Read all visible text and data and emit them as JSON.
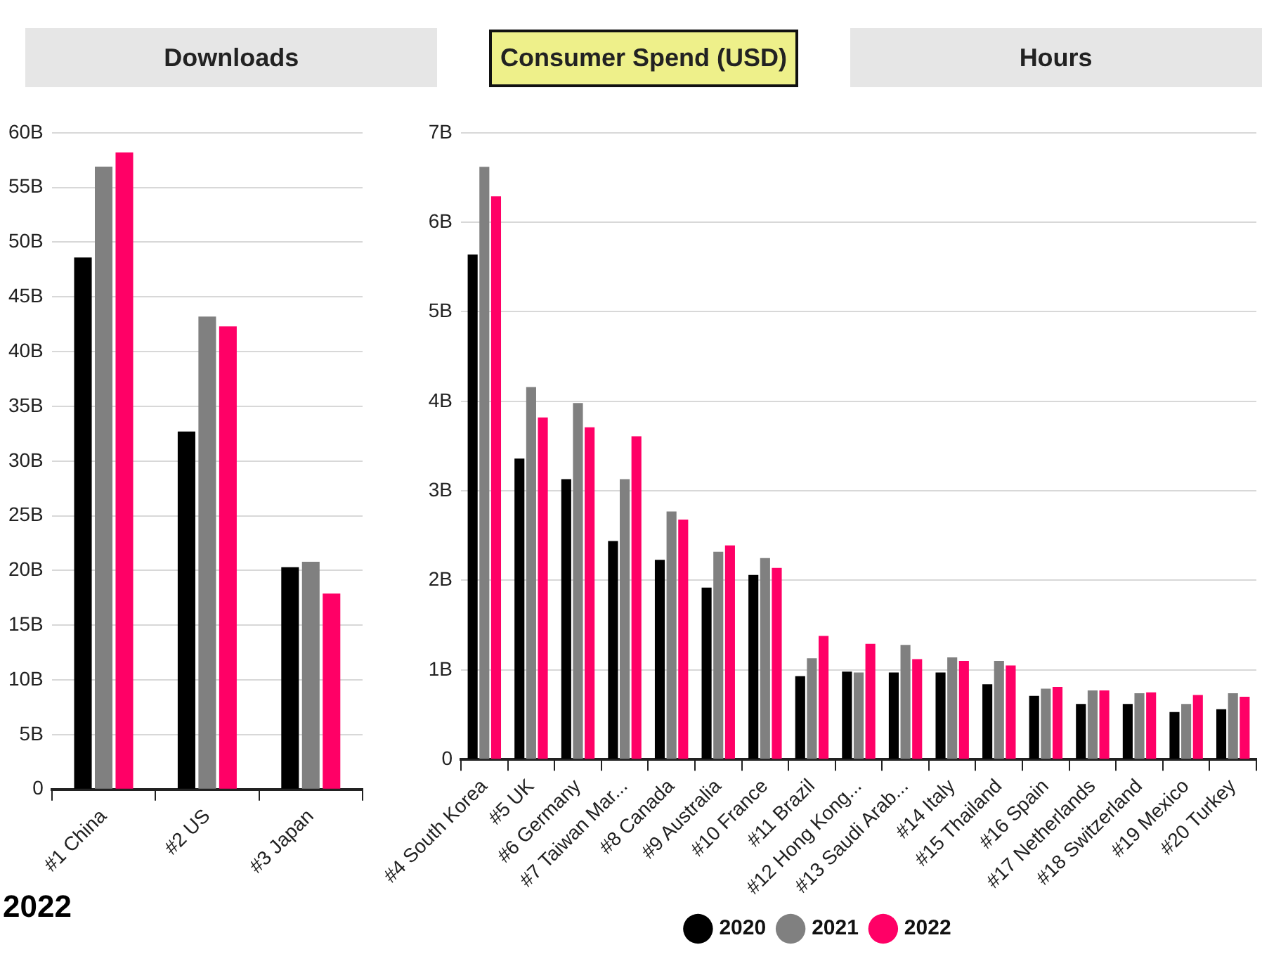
{
  "chart_data": [
    {
      "type": "bar",
      "annotations": [
        "Downloads",
        "Consumer Spend (USD)",
        "Hours"
      ],
      "categories": [
        "#1 China",
        "#2 US",
        "#3 Japan"
      ],
      "series": [
        {
          "color": "#000000",
          "values": [
            48.6,
            32.7,
            20.3
          ]
        },
        {
          "color": "#808080",
          "values": [
            56.9,
            43.2,
            20.8
          ]
        },
        {
          "color": "#ff0066",
          "values": [
            58.2,
            42.3,
            17.9
          ]
        }
      ],
      "ylim": [
        0,
        60
      ],
      "yticks": [
        0,
        {
          "value": 5,
          "label": "5B"
        },
        {
          "value": 10,
          "label": "10B"
        },
        {
          "value": 15,
          "label": "15B"
        },
        {
          "value": 20,
          "label": "20B"
        },
        {
          "value": 25,
          "label": "25B"
        },
        {
          "value": 30,
          "label": "30B"
        },
        {
          "value": 35,
          "label": "35B"
        },
        {
          "value": 40,
          "label": "40B"
        },
        {
          "value": 45,
          "label": "45B"
        },
        {
          "value": 50,
          "label": "50B"
        },
        {
          "value": 55,
          "label": "55B"
        },
        {
          "value": 60,
          "label": "60B"
        }
      ],
      "grid": "y"
    },
    {
      "type": "bar",
      "annotations": [
        "2022"
      ],
      "categories": [
        "#4 South Korea",
        "#5 UK",
        "#6 Germany",
        "#7 Taiwan Mar...",
        "#8 Canada",
        "#9 Australia",
        "#10 France",
        "#11 Brazil",
        "#12 Hong Kong...",
        "#13 Saudi Arab...",
        "#14 Italy",
        "#15 Thailand",
        "#16 Spain",
        "#17 Netherlands",
        "#18 Switzerland",
        "#19 Mexico",
        "#20 Turkey"
      ],
      "series": [
        {
          "name": "2020",
          "color": "#000000",
          "values": [
            5.64,
            3.36,
            3.13,
            2.44,
            2.23,
            1.92,
            2.06,
            0.93,
            0.98,
            0.97,
            0.97,
            0.84,
            0.71,
            0.62,
            0.62,
            0.53,
            0.56
          ]
        },
        {
          "name": "2021",
          "color": "#808080",
          "values": [
            6.62,
            4.16,
            3.98,
            3.13,
            2.77,
            2.32,
            2.25,
            1.13,
            0.97,
            1.28,
            1.14,
            1.1,
            0.79,
            0.77,
            0.74,
            0.62,
            0.74
          ]
        },
        {
          "name": "2022",
          "color": "#ff0066",
          "values": [
            6.29,
            3.82,
            3.71,
            3.61,
            2.68,
            2.39,
            2.14,
            1.38,
            1.29,
            1.12,
            1.1,
            1.05,
            0.81,
            0.77,
            0.75,
            0.72,
            0.7
          ]
        }
      ],
      "ylim": [
        0,
        7
      ],
      "yticks": [
        0,
        {
          "value": 1,
          "label": "1B"
        },
        {
          "value": 2,
          "label": "2B"
        },
        {
          "value": 3,
          "label": "3B"
        },
        {
          "value": 4,
          "label": "4B"
        },
        {
          "value": 5,
          "label": "5B"
        },
        {
          "value": 6,
          "label": "6B"
        },
        {
          "value": 7,
          "label": "7B"
        }
      ],
      "grid": "y",
      "legend": "bottom"
    }
  ]
}
